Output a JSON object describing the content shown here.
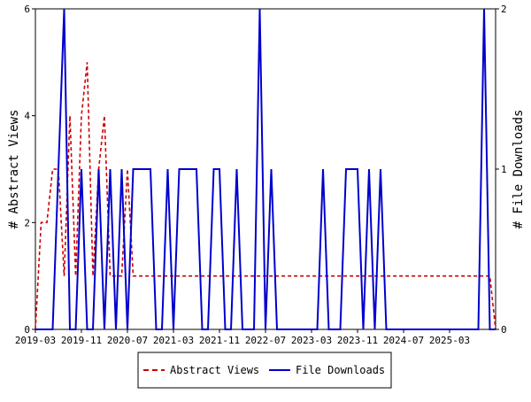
{
  "chart_data": {
    "type": "line",
    "title": "",
    "xlabel": "",
    "ylabel": "# Abstract Views",
    "y2label": "# File Downloads",
    "ylim": [
      0,
      6
    ],
    "y2lim": [
      0,
      2
    ],
    "yticks": [
      "0",
      "2",
      "4",
      "6"
    ],
    "y2ticks": [
      "0",
      "1",
      "2"
    ],
    "xlim": [
      0,
      80
    ],
    "xticks": [
      {
        "i": 0,
        "label": "2019-03"
      },
      {
        "i": 8,
        "label": "2019-11"
      },
      {
        "i": 16,
        "label": "2020-07"
      },
      {
        "i": 24,
        "label": "2021-03"
      },
      {
        "i": 32,
        "label": "2021-11"
      },
      {
        "i": 40,
        "label": "2022-07"
      },
      {
        "i": 48,
        "label": "2023-03"
      },
      {
        "i": 56,
        "label": "2023-11"
      },
      {
        "i": 64,
        "label": "2024-07"
      },
      {
        "i": 72,
        "label": "2025-03"
      }
    ],
    "grid": false,
    "legend_position": "bottom-center",
    "series": [
      {
        "name": "Abstract Views",
        "axis": "left",
        "color": "#cc0000",
        "dash": true,
        "values": [
          0,
          2,
          2,
          3,
          3,
          1,
          4,
          1,
          4,
          5,
          1,
          3,
          4,
          1,
          1,
          1,
          3,
          1,
          1,
          1,
          1,
          1,
          1,
          1,
          1,
          1,
          1,
          1,
          1,
          1,
          1,
          1,
          1,
          1,
          1,
          1,
          1,
          1,
          1,
          1,
          1,
          1,
          1,
          1,
          1,
          1,
          1,
          1,
          1,
          1,
          1,
          1,
          1,
          1,
          1,
          1,
          1,
          1,
          1,
          1,
          1,
          1,
          1,
          1,
          1,
          1,
          1,
          1,
          1,
          1,
          1,
          1,
          1,
          1,
          1,
          1,
          1,
          1,
          1,
          1,
          0
        ]
      },
      {
        "name": "File Downloads",
        "axis": "right",
        "color": "#0000cc",
        "dash": false,
        "values": [
          0,
          0,
          0,
          0,
          1,
          2,
          0,
          0,
          1,
          0,
          0,
          1,
          0,
          1,
          0,
          1,
          0,
          1,
          1,
          1,
          1,
          0,
          0,
          1,
          0,
          1,
          1,
          1,
          1,
          0,
          0,
          1,
          1,
          0,
          0,
          1,
          0,
          0,
          0,
          2,
          0,
          1,
          0,
          0,
          0,
          0,
          0,
          0,
          0,
          0,
          1,
          0,
          0,
          0,
          1,
          1,
          1,
          0,
          1,
          0,
          1,
          0,
          0,
          0,
          0,
          0,
          0,
          0,
          0,
          0,
          0,
          0,
          0,
          0,
          0,
          0,
          0,
          0,
          2,
          0,
          0
        ]
      }
    ]
  }
}
